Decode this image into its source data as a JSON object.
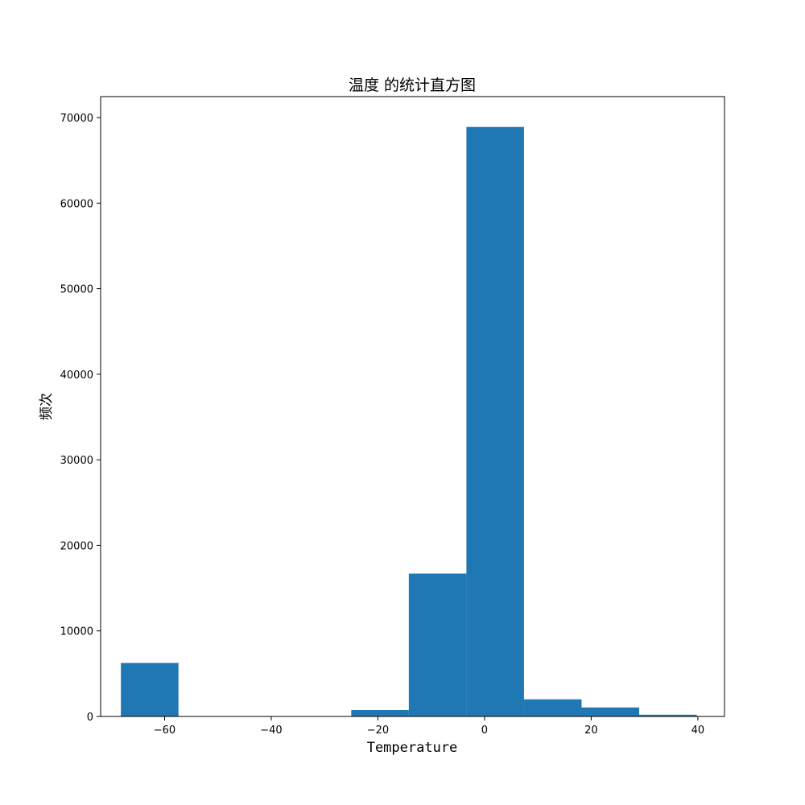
{
  "chart_data": {
    "type": "bar",
    "title": "温度 的统计直方图",
    "xlabel": "Temperature",
    "ylabel": "频次",
    "xlim": [
      -72,
      45
    ],
    "ylim": [
      0,
      72450
    ],
    "grid": false,
    "color": "#1f77b4",
    "bins": [
      {
        "x0": -68.2,
        "x1": -57.4,
        "value": 6250
      },
      {
        "x0": -57.4,
        "x1": -46.6,
        "value": 0
      },
      {
        "x0": -46.6,
        "x1": -35.8,
        "value": 0
      },
      {
        "x0": -35.8,
        "x1": -25.0,
        "value": 0
      },
      {
        "x0": -25.0,
        "x1": -14.2,
        "value": 750
      },
      {
        "x0": -14.2,
        "x1": -3.4,
        "value": 16700
      },
      {
        "x0": -3.4,
        "x1": 7.4,
        "value": 68900
      },
      {
        "x0": 7.4,
        "x1": 18.2,
        "value": 2000
      },
      {
        "x0": 18.2,
        "x1": 29.0,
        "value": 1050
      },
      {
        "x0": 29.0,
        "x1": 39.8,
        "value": 200
      }
    ],
    "xticks": [
      {
        "value": -60,
        "label": "−60"
      },
      {
        "value": -40,
        "label": "−40"
      },
      {
        "value": -20,
        "label": "−20"
      },
      {
        "value": 0,
        "label": "0"
      },
      {
        "value": 20,
        "label": "20"
      },
      {
        "value": 40,
        "label": "40"
      }
    ],
    "yticks": [
      {
        "value": 0,
        "label": "0"
      },
      {
        "value": 10000,
        "label": "10000"
      },
      {
        "value": 20000,
        "label": "20000"
      },
      {
        "value": 30000,
        "label": "30000"
      },
      {
        "value": 40000,
        "label": "40000"
      },
      {
        "value": 50000,
        "label": "50000"
      },
      {
        "value": 60000,
        "label": "60000"
      },
      {
        "value": 70000,
        "label": "70000"
      }
    ]
  }
}
